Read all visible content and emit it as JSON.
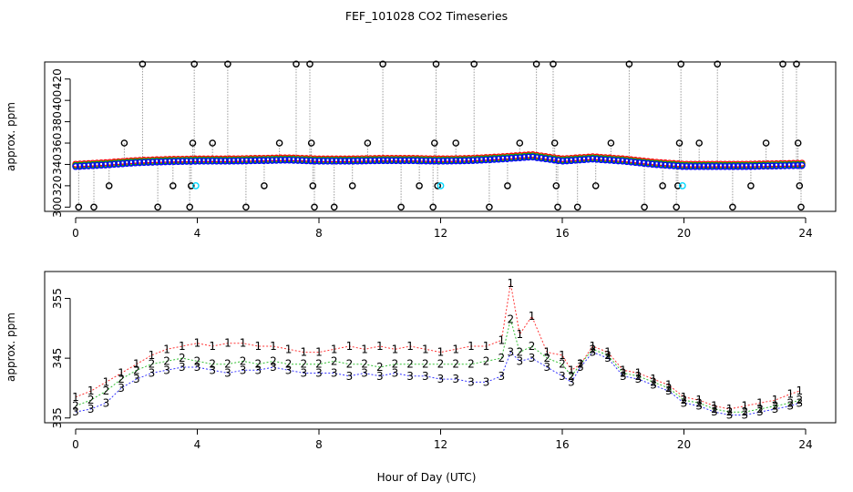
{
  "figure": {
    "title": "FEF_101028  CO2 Timeseries",
    "xlabel": "Hour of Day (UTC)"
  },
  "colors": {
    "series1": "#ff0000",
    "series2": "#00b000",
    "series3": "#0000ff",
    "flagged": "#000000",
    "special": "#00d8ff",
    "link": "#9a9a9a"
  },
  "chart_data": [
    {
      "type": "scatter",
      "title": "",
      "ylabel": "approx. ppm",
      "xlim": [
        0,
        24
      ],
      "ylim": [
        296,
        436
      ],
      "xticks": [
        0,
        4,
        8,
        12,
        16,
        20,
        24
      ],
      "yticks": [
        300,
        320,
        340,
        360,
        380,
        400,
        420
      ],
      "grid": false,
      "legend": "none",
      "baseline_x": [
        0,
        1,
        2,
        3,
        4,
        5,
        6,
        7,
        8,
        9,
        10,
        11,
        12,
        13,
        14,
        15,
        16,
        17,
        18,
        19,
        20,
        21,
        22,
        23,
        24
      ],
      "baseline_y": [
        338,
        339.5,
        341.5,
        342.5,
        343,
        343,
        343.5,
        344,
        343,
        343,
        343.5,
        343.5,
        343,
        343.5,
        345,
        347,
        343,
        345,
        343,
        340,
        338,
        338,
        338,
        338.5,
        339
      ],
      "flagged_points": {
        "x": [
          0.1,
          0.6,
          1.1,
          1.6,
          2.2,
          2.7,
          3.2,
          3.75,
          3.8,
          3.85,
          3.9,
          4.5,
          5.0,
          5.6,
          6.2,
          6.7,
          7.25,
          7.7,
          7.75,
          7.8,
          7.85,
          8.5,
          9.1,
          9.6,
          10.1,
          10.7,
          11.3,
          11.75,
          11.8,
          11.85,
          11.9,
          12.5,
          13.1,
          13.6,
          14.2,
          14.6,
          15.15,
          15.7,
          15.75,
          15.8,
          15.85,
          16.5,
          17.1,
          17.6,
          18.2,
          18.7,
          19.3,
          19.75,
          19.8,
          19.85,
          19.9,
          20.5,
          21.1,
          21.6,
          22.2,
          22.7,
          23.25,
          23.7,
          23.75,
          23.8,
          23.85
        ],
        "y": [
          300,
          300,
          320,
          360,
          440,
          300,
          320,
          300,
          320,
          360,
          440,
          360,
          440,
          300,
          320,
          360,
          440,
          440,
          360,
          320,
          300,
          300,
          320,
          360,
          440,
          300,
          320,
          300,
          360,
          440,
          320,
          360,
          440,
          300,
          320,
          360,
          440,
          440,
          360,
          320,
          300,
          300,
          320,
          360,
          440,
          300,
          320,
          300,
          320,
          360,
          440,
          360,
          440,
          300,
          320,
          360,
          440,
          440,
          360,
          320,
          300
        ]
      },
      "special_points": {
        "x": [
          3.95,
          12.0,
          19.95
        ],
        "y": [
          320,
          320,
          320
        ]
      },
      "series": [
        {
          "values_offset": 2.2
        },
        {
          "values_offset": 1.0
        },
        {
          "values_offset": 0.0
        }
      ]
    },
    {
      "type": "scatter",
      "title": "",
      "ylabel": "approx. ppm",
      "xlim": [
        0,
        24
      ],
      "ylim": [
        334.2,
        359.5
      ],
      "xticks": [
        0,
        4,
        8,
        12,
        16,
        20,
        24
      ],
      "yticks": [
        335,
        345,
        355
      ],
      "grid": false,
      "legend": "none",
      "point_labels": [
        "1",
        "2",
        "3"
      ],
      "series_labels": [
        "1",
        "2",
        "3"
      ],
      "x": [
        0,
        0.5,
        1,
        1.5,
        2,
        2.5,
        3,
        3.5,
        4,
        4.5,
        5,
        5.5,
        6,
        6.5,
        7,
        7.5,
        8,
        8.5,
        9,
        9.5,
        10,
        10.5,
        11,
        11.5,
        12,
        12.5,
        13,
        13.5,
        14,
        14.3,
        14.6,
        15,
        15.5,
        16,
        16.3,
        16.6,
        17,
        17.5,
        18,
        18.5,
        19,
        19.5,
        20,
        20.5,
        21,
        21.5,
        22,
        22.5,
        23,
        23.5,
        23.8
      ],
      "series": [
        {
          "values": [
            338.5,
            339.5,
            341,
            342.5,
            344,
            345.5,
            346.5,
            347,
            347.5,
            347,
            347.5,
            347.5,
            347,
            347,
            346.5,
            346,
            346,
            346.5,
            347,
            346.5,
            347,
            346.5,
            347,
            346.5,
            346,
            346.5,
            347,
            347,
            348,
            357.5,
            349,
            352,
            346,
            345.5,
            343,
            344,
            347,
            346,
            343,
            342.5,
            341.5,
            340.5,
            338.5,
            338,
            337,
            336.5,
            337,
            337.5,
            338,
            339,
            339.5
          ]
        },
        {
          "values": [
            337,
            338,
            339.5,
            341.5,
            343,
            344,
            344.5,
            345,
            344.5,
            344,
            344,
            344.5,
            344,
            344.5,
            344,
            344,
            344,
            344.5,
            344,
            344,
            343.5,
            344,
            344,
            344,
            344,
            344,
            344,
            344.5,
            345,
            351.5,
            346,
            347,
            345,
            344,
            342,
            344,
            346.5,
            345.5,
            342.5,
            342,
            341,
            340,
            338,
            337.5,
            336.5,
            336,
            336,
            336.5,
            337,
            337.5,
            338
          ]
        },
        {
          "values": [
            336,
            336.5,
            337.5,
            340,
            341.5,
            342.5,
            343,
            343.5,
            343.5,
            343,
            342.5,
            343,
            343,
            343.5,
            343,
            342.5,
            342.5,
            342.5,
            342,
            342.5,
            342,
            342.5,
            342,
            342,
            341.5,
            341.5,
            341,
            341,
            342,
            346,
            344.5,
            345,
            343.5,
            342,
            341,
            343.5,
            346,
            345,
            342,
            341.5,
            340.5,
            339.5,
            337.5,
            337,
            336,
            335.5,
            335.5,
            336,
            336.5,
            337,
            337.5
          ]
        }
      ]
    }
  ]
}
